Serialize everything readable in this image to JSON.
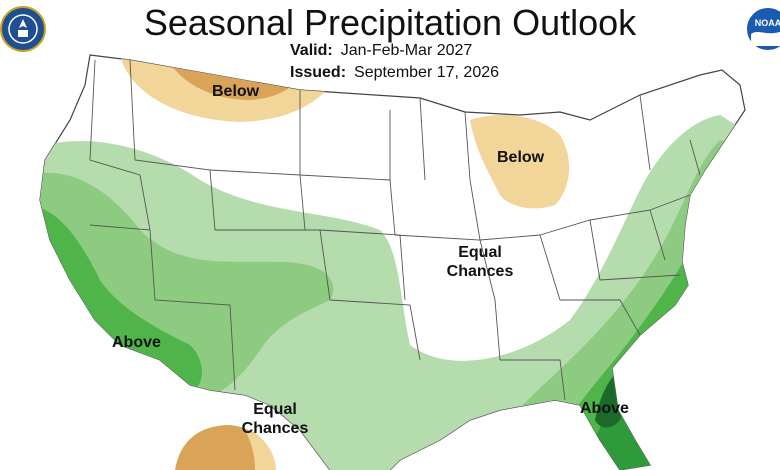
{
  "header": {
    "title": "Seasonal Precipitation Outlook",
    "valid_label": "Valid:",
    "valid_value": "Jan-Feb-Mar 2027",
    "issued_label": "Issued:",
    "issued_value": "September 17, 2026"
  },
  "logos": {
    "left": "us-department-of-commerce-seal",
    "right": "noaa-logo",
    "right_text": "NOAA"
  },
  "map_labels": {
    "below_north": "Below",
    "below_great_lakes": "Below",
    "equal_chances_central_1": "Equal",
    "equal_chances_central_2": "Chances",
    "above_west": "Above",
    "equal_chances_south_1": "Equal",
    "equal_chances_south_2": "Chances",
    "above_southeast": "Above"
  },
  "colors": {
    "above_light": "#b5dcad",
    "above_mid": "#8ccb80",
    "above_strong": "#4fb44a",
    "above_stronger": "#2e9a3a",
    "above_strongest": "#1b6a2a",
    "below_light": "#f2d598",
    "below_mid": "#d9a358",
    "state_lines": "#555555"
  }
}
